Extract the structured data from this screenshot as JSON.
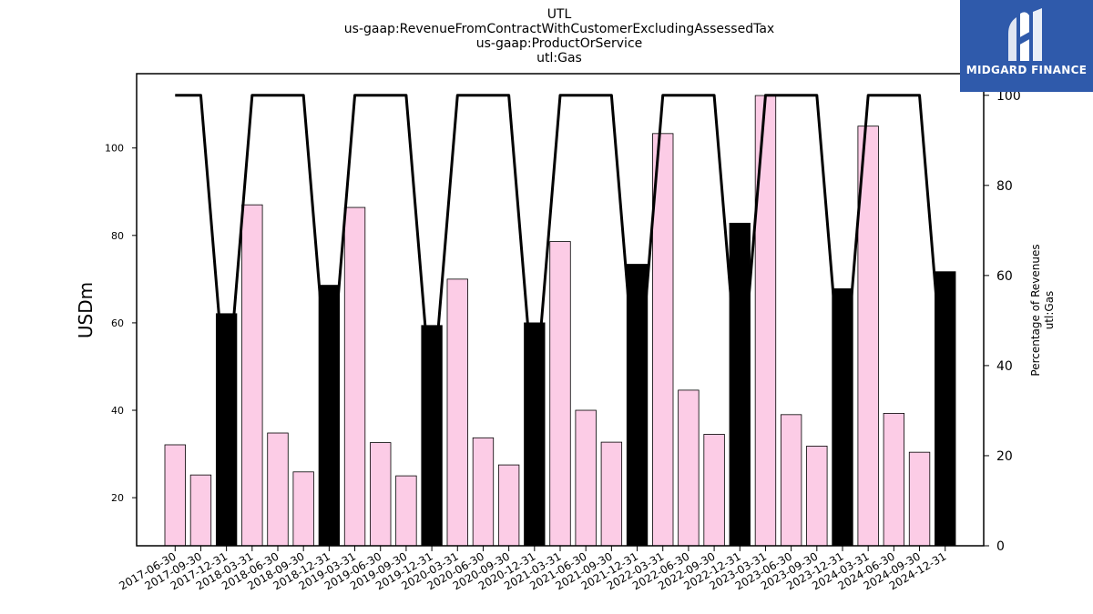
{
  "brand": {
    "name": "MIDGARD FINANCE",
    "accent": "#2f5aab"
  },
  "chart_data": {
    "type": "bar",
    "title_lines": [
      "UTL",
      "us-gaap:RevenueFromContractWithCustomerExcludingAssessedTax",
      "us-gaap:ProductOrService",
      "utl:Gas"
    ],
    "ylabel": "USDm",
    "y2label_lines": [
      "Percentage of Revenues",
      "utl:Gas"
    ],
    "ylim": [
      9,
      117
    ],
    "y2lim": [
      0,
      104.8
    ],
    "yticks": [
      20,
      40,
      60,
      80,
      100
    ],
    "y2ticks": [
      0,
      20,
      40,
      60,
      80,
      100
    ],
    "grid": false,
    "colors": {
      "quarter_bar": "#fccce6",
      "annual_bar": "#000000",
      "line": "#000000"
    },
    "categories": [
      "2017-06-30",
      "2017-09-30",
      "2017-12-31",
      "2018-03-31",
      "2018-06-30",
      "2018-09-30",
      "2018-12-31",
      "2019-03-31",
      "2019-06-30",
      "2019-09-30",
      "2019-12-31",
      "2020-03-31",
      "2020-06-30",
      "2020-09-30",
      "2020-12-31",
      "2021-03-31",
      "2021-06-30",
      "2021-09-30",
      "2021-12-31",
      "2022-03-31",
      "2022-06-30",
      "2022-09-30",
      "2022-12-31",
      "2023-03-31",
      "2023-06-30",
      "2023-09-30",
      "2023-12-31",
      "2024-03-31",
      "2024-06-30",
      "2024-09-30",
      "2024-12-31"
    ],
    "series": [
      {
        "type": "bar",
        "axis": "left",
        "values": [
          32.1,
          25.2,
          62.1,
          87.0,
          34.8,
          25.9,
          68.6,
          86.4,
          32.6,
          25.0,
          59.4,
          70.0,
          33.7,
          27.5,
          60.0,
          78.6,
          40.0,
          32.7,
          73.4,
          103.3,
          44.6,
          34.5,
          82.8,
          112.0,
          39.0,
          31.8,
          67.8,
          105.0,
          39.3,
          30.4,
          71.7
        ],
        "highlighted": [
          false,
          false,
          true,
          false,
          false,
          false,
          true,
          false,
          false,
          false,
          true,
          false,
          false,
          false,
          true,
          false,
          false,
          false,
          true,
          false,
          false,
          false,
          true,
          false,
          false,
          false,
          true,
          false,
          false,
          false,
          true
        ]
      },
      {
        "type": "line",
        "axis": "right",
        "values": [
          100,
          100,
          31,
          100,
          100,
          100,
          31,
          100,
          100,
          100,
          31,
          100,
          100,
          100,
          31,
          100,
          100,
          100,
          31,
          100,
          100,
          100,
          31,
          100,
          100,
          100,
          31,
          100,
          100,
          100,
          31
        ]
      }
    ]
  }
}
